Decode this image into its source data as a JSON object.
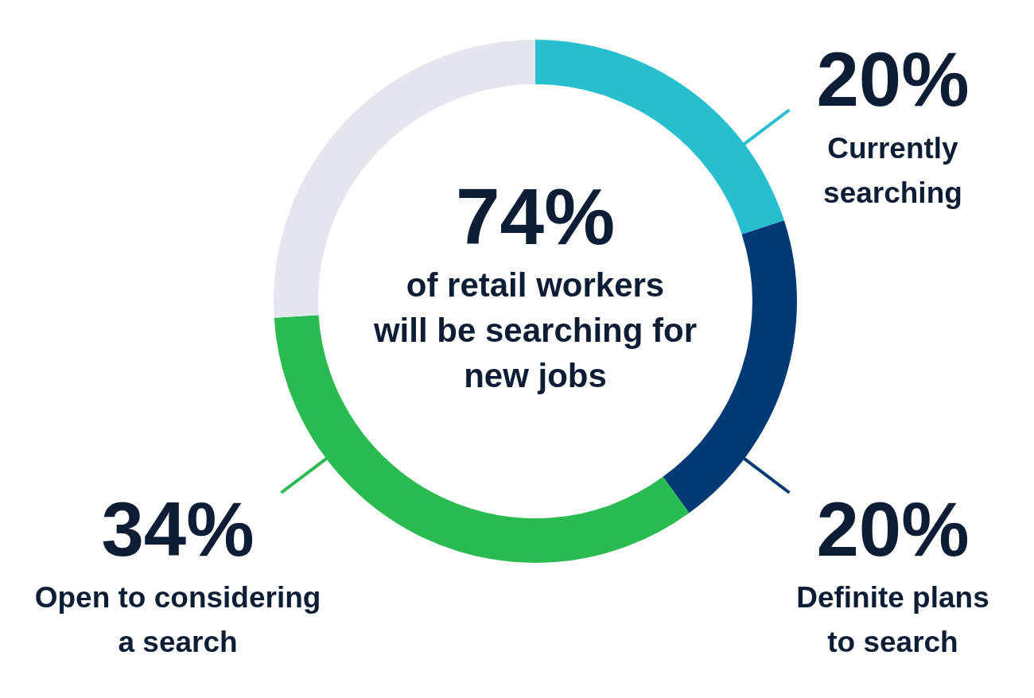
{
  "chart_data": {
    "type": "donut",
    "categories": [
      "Currently searching",
      "Definite plans to search",
      "Open to considering a search",
      null
    ],
    "values": [
      20,
      20,
      34,
      26
    ],
    "colors": [
      "#27bfd0",
      "#003a75",
      "#2abb50",
      "#e3e7ed"
    ],
    "value_labels": [
      "20%",
      "20%",
      "34%",
      null
    ],
    "annotations": [
      "74%",
      "of retail workers will be searching for new jobs"
    ]
  }
}
